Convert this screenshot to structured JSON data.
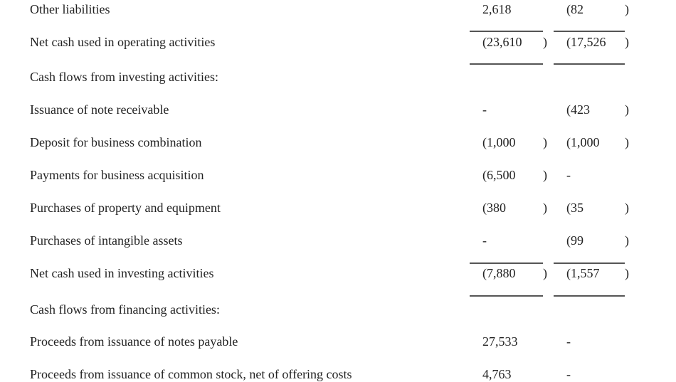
{
  "rows": [
    {
      "label": "Other liabilities",
      "v1": "2,618",
      "p1": "",
      "v2": "(82",
      "p2": ")"
    },
    {
      "label": "Net cash used in operating activities",
      "v1": "(23,610",
      "p1": ")",
      "v2": "(17,526",
      "p2": ")"
    },
    {
      "label": "Cash flows from investing activities:",
      "v1": "",
      "p1": "",
      "v2": "",
      "p2": ""
    },
    {
      "label": "Issuance of note receivable",
      "v1": "-",
      "p1": "",
      "v2": "(423",
      "p2": ")"
    },
    {
      "label": "Deposit for business combination",
      "v1": "(1,000",
      "p1": ")",
      "v2": "(1,000",
      "p2": ")"
    },
    {
      "label": "Payments for business acquisition",
      "v1": "(6,500",
      "p1": ")",
      "v2": "-",
      "p2": ""
    },
    {
      "label": "Purchases of property and equipment",
      "v1": "(380",
      "p1": ")",
      "v2": "(35",
      "p2": ")"
    },
    {
      "label": "Purchases of intangible assets",
      "v1": "-",
      "p1": "",
      "v2": "(99",
      "p2": ")"
    },
    {
      "label": "Net cash used in investing activities",
      "v1": "(7,880",
      "p1": ")",
      "v2": "(1,557",
      "p2": ")"
    },
    {
      "label": "Cash flows from financing activities:",
      "v1": "",
      "p1": "",
      "v2": "",
      "p2": ""
    },
    {
      "label": "Proceeds from issuance of notes payable",
      "v1": "27,533",
      "p1": "",
      "v2": "-",
      "p2": ""
    },
    {
      "label": "Proceeds from issuance of common stock, net of offering costs",
      "v1": "4,763",
      "p1": "",
      "v2": "-",
      "p2": ""
    }
  ]
}
